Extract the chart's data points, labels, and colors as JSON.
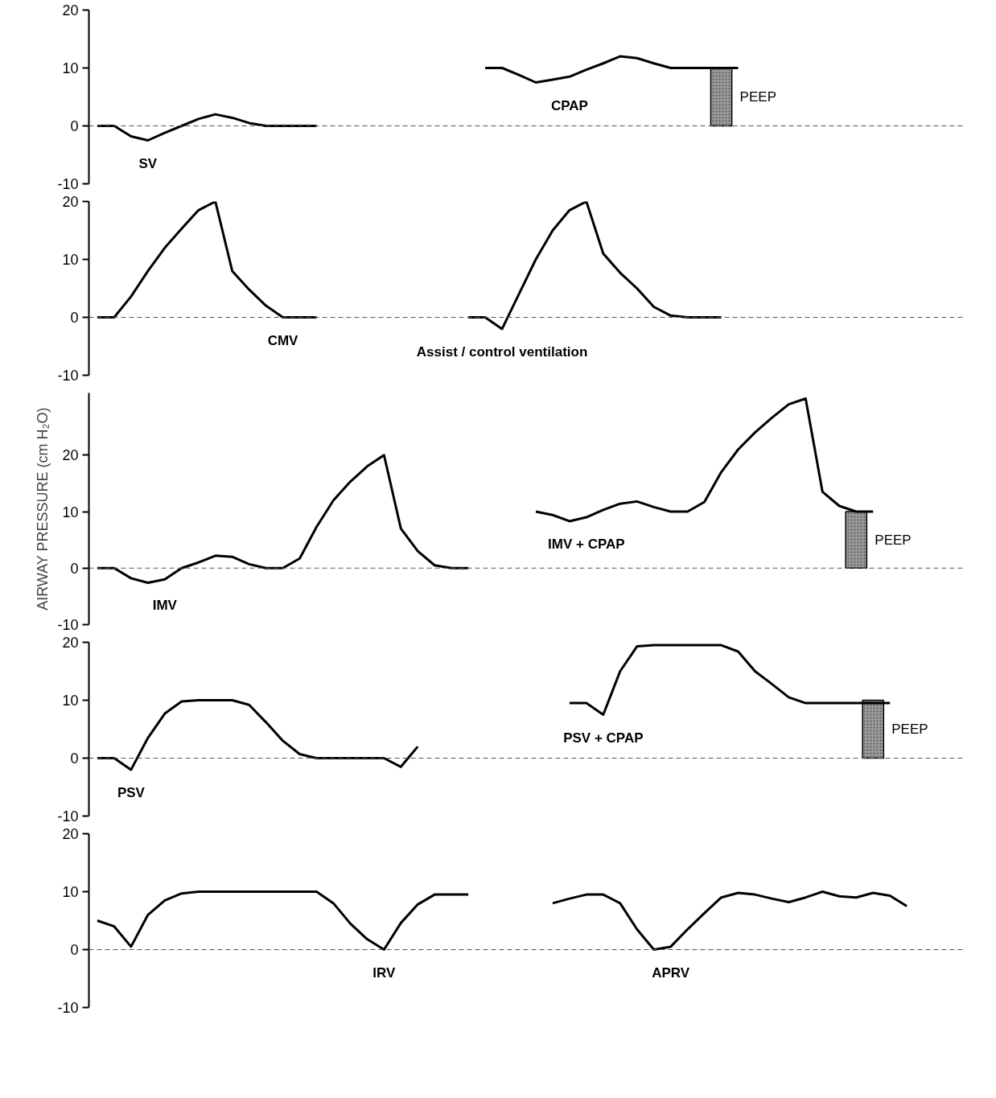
{
  "chart_data": [
    {
      "type": "line",
      "categories": [
        null,
        null,
        null,
        null,
        null,
        null,
        null,
        null,
        null,
        null,
        null,
        null,
        null,
        null,
        null,
        null,
        null,
        null,
        null,
        null,
        null,
        null,
        null,
        null,
        null,
        null,
        null,
        null,
        null,
        null,
        null,
        null,
        null,
        null,
        null,
        null,
        null,
        null,
        null,
        null,
        null,
        null,
        null,
        null,
        null,
        null,
        null,
        null,
        null,
        null,
        null,
        null
      ],
      "ylim": [
        -10,
        20
      ],
      "yticks": [
        -10,
        0,
        10,
        20
      ],
      "tick_labels": "y",
      "ref_lines": [
        {
          "axis": "y",
          "value": 0,
          "line_style": "dashed",
          "color": "#555555"
        }
      ],
      "series": [
        {
          "name": "SV",
          "color": "#000000",
          "values": [
            0,
            0,
            -1.8,
            -2.5,
            -1.2,
            0,
            1.2,
            2,
            1.4,
            0.5,
            0,
            0,
            0,
            0,
            null,
            null,
            null,
            null,
            null,
            null,
            null,
            null,
            null,
            null,
            null,
            null,
            null,
            null,
            null,
            null,
            null,
            null,
            null,
            null,
            null,
            null,
            null,
            null,
            null,
            null,
            null,
            null,
            null,
            null,
            null,
            null,
            null,
            null,
            null,
            null,
            null,
            null
          ]
        },
        {
          "name": "CPAP",
          "color": "#000000",
          "values": [
            null,
            null,
            null,
            null,
            null,
            null,
            null,
            null,
            null,
            null,
            null,
            null,
            null,
            null,
            null,
            null,
            null,
            null,
            null,
            null,
            null,
            null,
            null,
            10,
            10,
            8.8,
            7.5,
            8,
            8.5,
            9.7,
            10.8,
            12,
            11.7,
            10.8,
            10,
            10,
            10,
            10,
            10,
            null,
            null,
            null,
            null,
            null,
            null,
            null,
            null,
            null,
            null,
            null,
            null,
            null
          ]
        },
        {
          "name": "PEEP",
          "type": "bar",
          "color": "#9a9a9a",
          "values": [
            null,
            null,
            null,
            null,
            null,
            null,
            null,
            null,
            null,
            null,
            null,
            null,
            null,
            null,
            null,
            null,
            null,
            null,
            null,
            null,
            null,
            null,
            null,
            null,
            null,
            null,
            null,
            null,
            null,
            null,
            null,
            null,
            null,
            null,
            null,
            null,
            null,
            10,
            null,
            null,
            null,
            null,
            null,
            null,
            null,
            null,
            null,
            null,
            null,
            null,
            null,
            null
          ]
        }
      ]
    },
    {
      "type": "line",
      "categories": [
        null,
        null,
        null,
        null,
        null,
        null,
        null,
        null,
        null,
        null,
        null,
        null,
        null,
        null,
        null,
        null,
        null,
        null,
        null,
        null,
        null,
        null,
        null,
        null,
        null,
        null,
        null,
        null,
        null,
        null,
        null,
        null,
        null,
        null,
        null,
        null,
        null,
        null,
        null,
        null,
        null,
        null,
        null,
        null,
        null,
        null,
        null,
        null,
        null,
        null,
        null,
        null
      ],
      "ylim": [
        -10,
        20
      ],
      "yticks": [
        -10,
        0,
        10,
        20
      ],
      "tick_labels": "y",
      "ref_lines": [
        {
          "axis": "y",
          "value": 0,
          "line_style": "dashed",
          "color": "#555555"
        }
      ],
      "series": [
        {
          "name": "CMV",
          "color": "#000000",
          "values": [
            0,
            0,
            3.6,
            8,
            12,
            15.3,
            18.5,
            20,
            8,
            4.8,
            2,
            0,
            0,
            0,
            null,
            null,
            null,
            null,
            null,
            null,
            null,
            null,
            null,
            null,
            null,
            null,
            null,
            null,
            null,
            null,
            null,
            null,
            null,
            null,
            null,
            null,
            null,
            null,
            null,
            null,
            null,
            null,
            null,
            null,
            null,
            null,
            null,
            null,
            null,
            null,
            null,
            null
          ]
        },
        {
          "name": "Assist / control ventilation",
          "color": "#000000",
          "values": [
            null,
            null,
            null,
            null,
            null,
            null,
            null,
            null,
            null,
            null,
            null,
            null,
            null,
            null,
            null,
            null,
            null,
            null,
            null,
            null,
            null,
            null,
            0,
            0,
            -2,
            4,
            10,
            15,
            18.5,
            20,
            11,
            7.7,
            5,
            1.8,
            0.3,
            0,
            0,
            0,
            null,
            null,
            null,
            null,
            null,
            null,
            null,
            null,
            null,
            null,
            null,
            null,
            null,
            null
          ]
        }
      ]
    },
    {
      "type": "line",
      "categories": [
        null,
        null,
        null,
        null,
        null,
        null,
        null,
        null,
        null,
        null,
        null,
        null,
        null,
        null,
        null,
        null,
        null,
        null,
        null,
        null,
        null,
        null,
        null,
        null,
        null,
        null,
        null,
        null,
        null,
        null,
        null,
        null,
        null,
        null,
        null,
        null,
        null,
        null,
        null,
        null,
        null,
        null,
        null,
        null,
        null,
        null,
        null,
        null,
        null,
        null,
        null,
        null
      ],
      "ylim": [
        -10,
        31
      ],
      "yticks": [
        -10,
        0,
        10,
        20
      ],
      "tick_labels": "y",
      "ylabel": "AIRWAY PRESSURE (cm H₂O)",
      "ref_lines": [
        {
          "axis": "y",
          "value": 0,
          "line_style": "dashed",
          "color": "#555555"
        }
      ],
      "series": [
        {
          "name": "IMV",
          "color": "#000000",
          "values": [
            0,
            0,
            -1.8,
            -2.6,
            -2,
            0,
            1,
            2.2,
            2,
            0.7,
            0,
            0,
            1.7,
            7.3,
            12,
            15.3,
            18,
            20,
            7,
            3,
            0.5,
            0,
            0,
            null,
            null,
            null,
            null,
            null,
            null,
            null,
            null,
            null,
            null,
            null,
            null,
            null,
            null,
            null,
            null,
            null,
            null,
            null,
            null,
            null,
            null,
            null,
            null,
            null,
            null,
            null,
            null,
            null
          ]
        },
        {
          "name": "IMV + CPAP",
          "color": "#000000",
          "values": [
            null,
            null,
            null,
            null,
            null,
            null,
            null,
            null,
            null,
            null,
            null,
            null,
            null,
            null,
            null,
            null,
            null,
            null,
            null,
            null,
            null,
            null,
            null,
            null,
            null,
            null,
            10,
            9.4,
            8.3,
            9,
            10.3,
            11.4,
            11.8,
            10.8,
            10,
            10,
            11.7,
            17,
            21,
            24,
            26.6,
            29,
            30,
            13.5,
            11,
            10,
            10,
            null,
            null,
            null,
            null,
            null
          ]
        },
        {
          "name": "PEEP",
          "type": "bar",
          "color": "#9a9a9a",
          "values": [
            null,
            null,
            null,
            null,
            null,
            null,
            null,
            null,
            null,
            null,
            null,
            null,
            null,
            null,
            null,
            null,
            null,
            null,
            null,
            null,
            null,
            null,
            null,
            null,
            null,
            null,
            null,
            null,
            null,
            null,
            null,
            null,
            null,
            null,
            null,
            null,
            null,
            null,
            null,
            null,
            null,
            null,
            null,
            null,
            null,
            10,
            null,
            null,
            null,
            null,
            null,
            null
          ]
        }
      ]
    },
    {
      "type": "line",
      "categories": [
        null,
        null,
        null,
        null,
        null,
        null,
        null,
        null,
        null,
        null,
        null,
        null,
        null,
        null,
        null,
        null,
        null,
        null,
        null,
        null,
        null,
        null,
        null,
        null,
        null,
        null,
        null,
        null,
        null,
        null,
        null,
        null,
        null,
        null,
        null,
        null,
        null,
        null,
        null,
        null,
        null,
        null,
        null,
        null,
        null,
        null,
        null,
        null,
        null,
        null,
        null,
        null
      ],
      "ylim": [
        -10,
        20
      ],
      "yticks": [
        -10,
        0,
        10,
        20
      ],
      "tick_labels": "y",
      "ref_lines": [
        {
          "axis": "y",
          "value": 0,
          "line_style": "dashed",
          "color": "#555555"
        }
      ],
      "series": [
        {
          "name": "PSV",
          "color": "#000000",
          "values": [
            0,
            0,
            -2,
            3.5,
            7.7,
            9.8,
            10,
            10,
            10,
            9.2,
            6.2,
            3,
            0.7,
            0,
            0,
            0,
            0,
            0,
            -1.5,
            2,
            null,
            null,
            null,
            null,
            null,
            null,
            null,
            null,
            null,
            null,
            null,
            null,
            null,
            null,
            null,
            null,
            null,
            null,
            null,
            null,
            null,
            null,
            null,
            null,
            null,
            null,
            null,
            null,
            null,
            null,
            null,
            null
          ]
        },
        {
          "name": "PSV + CPAP",
          "color": "#000000",
          "values": [
            null,
            null,
            null,
            null,
            null,
            null,
            null,
            null,
            null,
            null,
            null,
            null,
            null,
            null,
            null,
            null,
            null,
            null,
            null,
            null,
            null,
            null,
            null,
            null,
            null,
            null,
            null,
            null,
            9.5,
            9.5,
            7.5,
            15,
            19.3,
            19.5,
            19.5,
            19.5,
            19.5,
            19.5,
            18.4,
            15,
            12.8,
            10.5,
            9.5,
            9.5,
            9.5,
            9.5,
            9.5,
            9.5,
            null,
            null,
            null,
            null
          ]
        },
        {
          "name": "PEEP",
          "type": "bar",
          "color": "#9a9a9a",
          "values": [
            null,
            null,
            null,
            null,
            null,
            null,
            null,
            null,
            null,
            null,
            null,
            null,
            null,
            null,
            null,
            null,
            null,
            null,
            null,
            null,
            null,
            null,
            null,
            null,
            null,
            null,
            null,
            null,
            null,
            null,
            null,
            null,
            null,
            null,
            null,
            null,
            null,
            null,
            null,
            null,
            null,
            null,
            null,
            null,
            null,
            null,
            10,
            null,
            null,
            null,
            null,
            null
          ]
        }
      ]
    },
    {
      "type": "line",
      "categories": [
        null,
        null,
        null,
        null,
        null,
        null,
        null,
        null,
        null,
        null,
        null,
        null,
        null,
        null,
        null,
        null,
        null,
        null,
        null,
        null,
        null,
        null,
        null,
        null,
        null,
        null,
        null,
        null,
        null,
        null,
        null,
        null,
        null,
        null,
        null,
        null,
        null,
        null,
        null,
        null,
        null,
        null,
        null,
        null,
        null,
        null,
        null,
        null,
        null,
        null,
        null,
        null
      ],
      "ylim": [
        -10,
        20
      ],
      "yticks": [
        -10,
        0,
        10,
        20
      ],
      "tick_labels": "y",
      "ref_lines": [
        {
          "axis": "y",
          "value": 0,
          "line_style": "dashed",
          "color": "#555555"
        }
      ],
      "series": [
        {
          "name": "IRV",
          "color": "#000000",
          "values": [
            5,
            4,
            0.5,
            6,
            8.5,
            9.7,
            10,
            10,
            10,
            10,
            10,
            10,
            10,
            10,
            8,
            4.5,
            1.8,
            0,
            4.6,
            7.8,
            9.5,
            9.5,
            9.5,
            null,
            null,
            null,
            null,
            null,
            null,
            null,
            null,
            null,
            null,
            null,
            null,
            null,
            null,
            null,
            null,
            null,
            null,
            null,
            null,
            null,
            null,
            null,
            null,
            null,
            null,
            null,
            null,
            null
          ]
        },
        {
          "name": "APRV",
          "color": "#000000",
          "values": [
            null,
            null,
            null,
            null,
            null,
            null,
            null,
            null,
            null,
            null,
            null,
            null,
            null,
            null,
            null,
            null,
            null,
            null,
            null,
            null,
            null,
            null,
            null,
            null,
            null,
            null,
            null,
            8,
            8.8,
            9.5,
            9.5,
            8,
            3.5,
            0,
            0.5,
            3.5,
            6.3,
            9,
            9.8,
            9.5,
            8.8,
            8.2,
            9,
            10,
            9.2,
            9,
            9.8,
            9.3,
            7.5,
            null,
            null,
            null
          ]
        }
      ]
    }
  ]
}
